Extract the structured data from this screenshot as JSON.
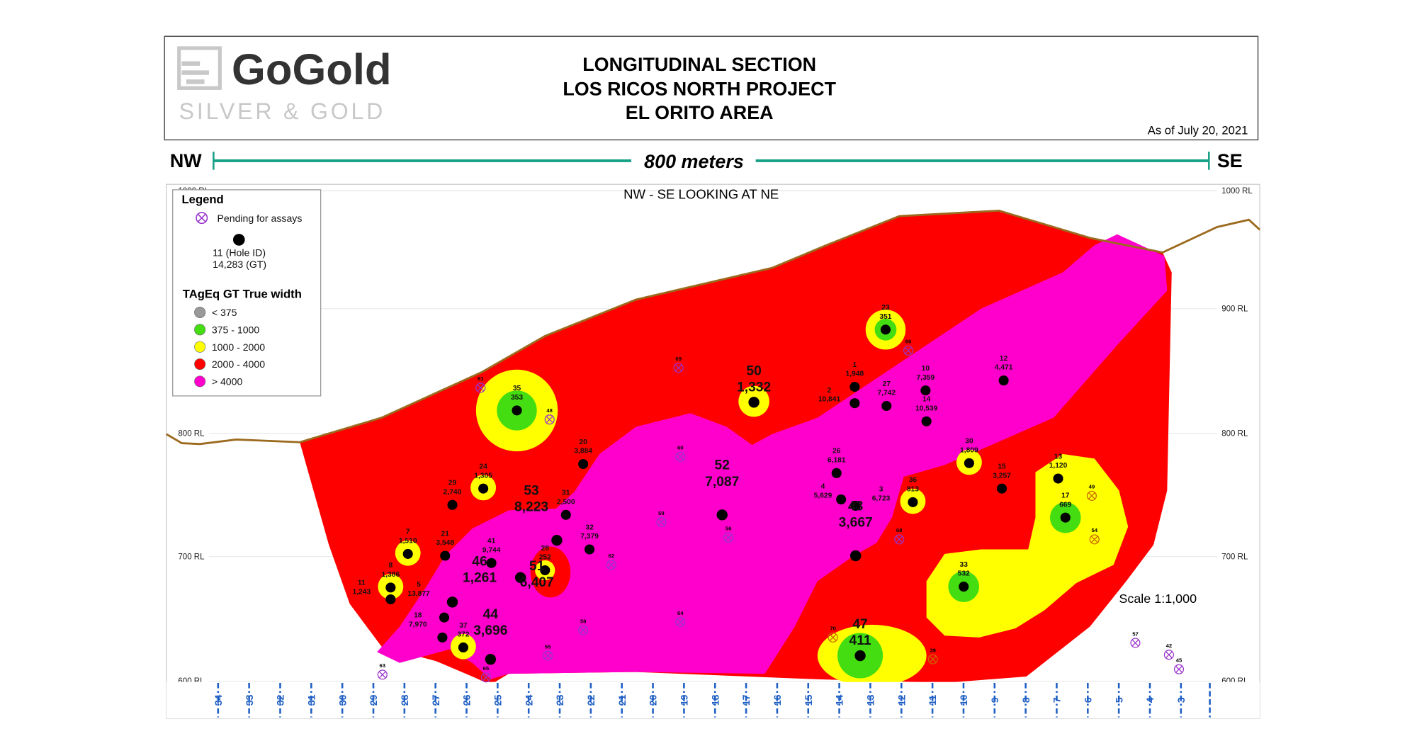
{
  "header": {
    "logo_word": "GoGold",
    "logo_sub": "SILVER & GOLD",
    "title_lines": [
      "LONGITUDINAL SECTION",
      "LOS RICOS NORTH PROJECT",
      "EL ORITO AREA"
    ],
    "date": "As of July 20, 2021"
  },
  "scale_bar": {
    "left": "NW",
    "right": "SE",
    "label": "800 meters"
  },
  "section": {
    "view_label": "NW - SE LOOKING AT NE",
    "scale_label": "Scale 1:1,000",
    "rl_labels": [
      "1000 RL",
      "900 RL",
      "800 RL",
      "700 RL",
      "600 RL"
    ],
    "section_lines": [
      "34",
      "33",
      "32",
      "31",
      "30",
      "29",
      "28",
      "27",
      "26",
      "25",
      "24",
      "23",
      "22",
      "21",
      "20",
      "19",
      "18",
      "17",
      "16",
      "15",
      "14",
      "13",
      "12",
      "11",
      "10",
      "9",
      "8",
      "7",
      "6",
      "5",
      "4",
      "3"
    ]
  },
  "legend": {
    "title": "Legend",
    "pending_label": "Pending for assays",
    "hole_example_id": "11 (Hole ID)",
    "hole_example_gt": "14,283 (GT)",
    "gt_title": "TAgEq GT True width",
    "classes": [
      {
        "label": "< 375",
        "color": "#999999"
      },
      {
        "label": "375 - 1000",
        "color": "#44dd11"
      },
      {
        "label": "1000 - 2000",
        "color": "#ffff00"
      },
      {
        "label": "2000 - 4000",
        "color": "#ff0000"
      },
      {
        "label": "> 4000",
        "color": "#ff00cc"
      }
    ]
  },
  "colors": {
    "surface": "#9b6a1e",
    "scale_bar": "#16a085",
    "pending": "#9933cc",
    "section_line": "#1f5fc4"
  },
  "holes": [
    {
      "id": "35",
      "gt": "353"
    },
    {
      "id": "23",
      "gt": "351"
    },
    {
      "id": "50",
      "gt": "1,332"
    },
    {
      "id": "1",
      "gt": "1,948"
    },
    {
      "id": "2",
      "gt": "10,841"
    },
    {
      "id": "27",
      "gt": "7,742"
    },
    {
      "id": "10",
      "gt": "7,359"
    },
    {
      "id": "14",
      "gt": "10,539"
    },
    {
      "id": "12",
      "gt": "4,471"
    },
    {
      "id": "24",
      "gt": "1,305"
    },
    {
      "id": "29",
      "gt": "2,740"
    },
    {
      "id": "20",
      "gt": "3,884"
    },
    {
      "id": "31",
      "gt": "2,500"
    },
    {
      "id": "53",
      "gt": "8,223"
    },
    {
      "id": "32",
      "gt": "7,379"
    },
    {
      "id": "41",
      "gt": "9,744"
    },
    {
      "id": "7",
      "gt": "1,510"
    },
    {
      "id": "21",
      "gt": "3,548"
    },
    {
      "id": "8",
      "gt": "1,386"
    },
    {
      "id": "11",
      "gt": "1,243"
    },
    {
      "id": "28",
      "gt": "252"
    },
    {
      "id": "51",
      "gt": "6,407"
    },
    {
      "id": "46",
      "gt": "1,261"
    },
    {
      "id": "5",
      "gt": "13,877"
    },
    {
      "id": "18",
      "gt": "7,970"
    },
    {
      "id": "37",
      "gt": "372"
    },
    {
      "id": "44",
      "gt": "3,696"
    },
    {
      "id": "26",
      "gt": "6,181"
    },
    {
      "id": "4",
      "gt": "5,629"
    },
    {
      "id": "3",
      "gt": "6,723"
    },
    {
      "id": "43",
      "gt": "3,667"
    },
    {
      "id": "52",
      "gt": "7,087"
    },
    {
      "id": "36",
      "gt": "813"
    },
    {
      "id": "30",
      "gt": "1,809"
    },
    {
      "id": "15",
      "gt": "3,257"
    },
    {
      "id": "13",
      "gt": "1,120"
    },
    {
      "id": "17",
      "gt": "669"
    },
    {
      "id": "33",
      "gt": "532"
    },
    {
      "id": "47",
      "gt": "411"
    }
  ],
  "pending_holes": [
    "61",
    "48",
    "69",
    "66",
    "60",
    "59",
    "56",
    "62",
    "68",
    "49",
    "54",
    "58",
    "64",
    "55",
    "65",
    "63",
    "70",
    "39",
    "57",
    "42",
    "45"
  ]
}
